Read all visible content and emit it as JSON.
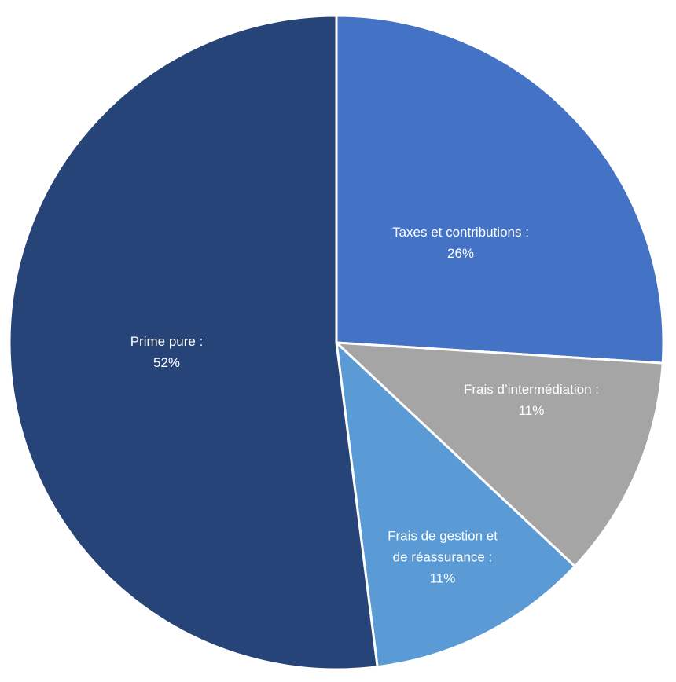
{
  "chart_data": {
    "type": "pie",
    "title": "",
    "slices": [
      {
        "label": "Taxes et contributions :",
        "label_lines": [
          "Taxes et contributions :"
        ],
        "value_label": "26%",
        "value": 26,
        "color": "#4472c4"
      },
      {
        "label": "Frais d’intermédiation :",
        "label_lines": [
          "Frais d’intermédiation :"
        ],
        "value_label": "11%",
        "value": 11,
        "color": "#a5a5a5"
      },
      {
        "label": "Frais de gestion et de réassurance :",
        "label_lines": [
          "Frais de gestion et",
          "de réassurance :"
        ],
        "value_label": "11%",
        "value": 11,
        "color": "#5b9bd5"
      },
      {
        "label": "Prime pure :",
        "label_lines": [
          "Prime pure :"
        ],
        "value_label": "52%",
        "value": 52,
        "color": "#264478"
      }
    ],
    "start_angle": "12 o'clock",
    "direction": "clockwise",
    "legend": "none",
    "data_labels": "inside slices"
  }
}
